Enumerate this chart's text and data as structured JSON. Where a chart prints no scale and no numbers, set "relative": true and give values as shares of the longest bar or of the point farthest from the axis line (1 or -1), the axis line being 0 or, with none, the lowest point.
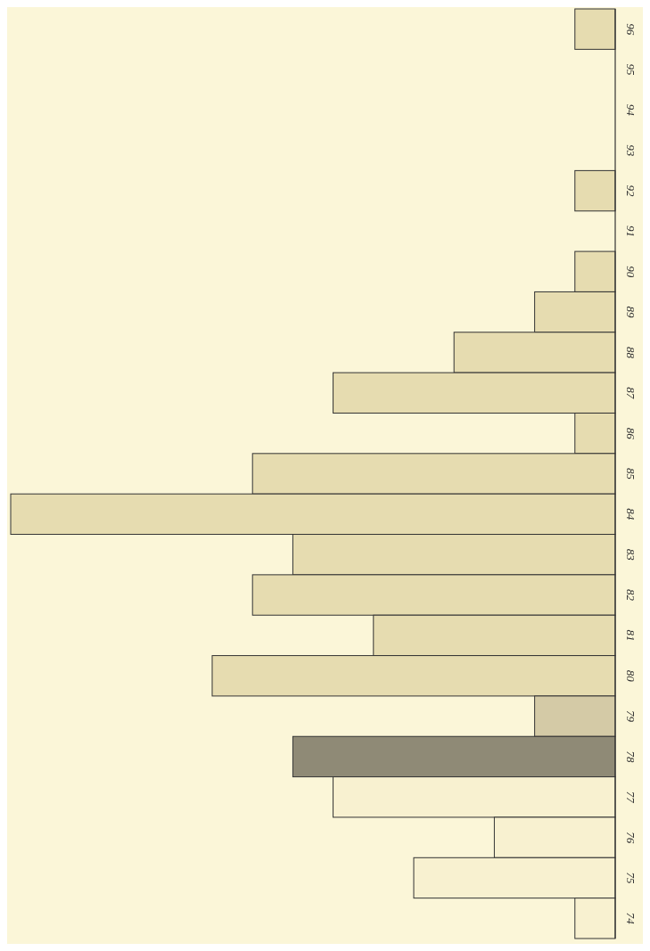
{
  "chart_data": {
    "type": "bar",
    "orientation": "horizontal",
    "relative": true,
    "categories": [
      "96",
      "95",
      "94",
      "93",
      "92",
      "91",
      "90",
      "89",
      "88",
      "87",
      "86",
      "85",
      "84",
      "83",
      "82",
      "81",
      "80",
      "79",
      "78",
      "77",
      "76",
      "75",
      "74"
    ],
    "values": [
      0.0667,
      0,
      0,
      0,
      0.0667,
      0,
      0.0667,
      0.1333,
      0.2667,
      0.4667,
      0.0667,
      0.6,
      1,
      0.5333,
      0.6,
      0.4,
      0.6667,
      0.1333,
      0.5333,
      0.4667,
      0.2,
      0.3333,
      0.0667
    ],
    "colors": [
      "#e6dcb0",
      "#e6dcb0",
      "#e6dcb0",
      "#e6dcb0",
      "#e6dcb0",
      "#e6dcb0",
      "#e6dcb0",
      "#e6dcb0",
      "#e6dcb0",
      "#e6dcb0",
      "#e6dcb0",
      "#e6dcb0",
      "#e6dcb0",
      "#e6dcb0",
      "#e6dcb0",
      "#e6dcb0",
      "#e6dcb0",
      "#d4caa6",
      "#8f8a76",
      "#f8f1d0",
      "#f8f1d0",
      "#f8f1d0",
      "#f8f1d0"
    ]
  }
}
